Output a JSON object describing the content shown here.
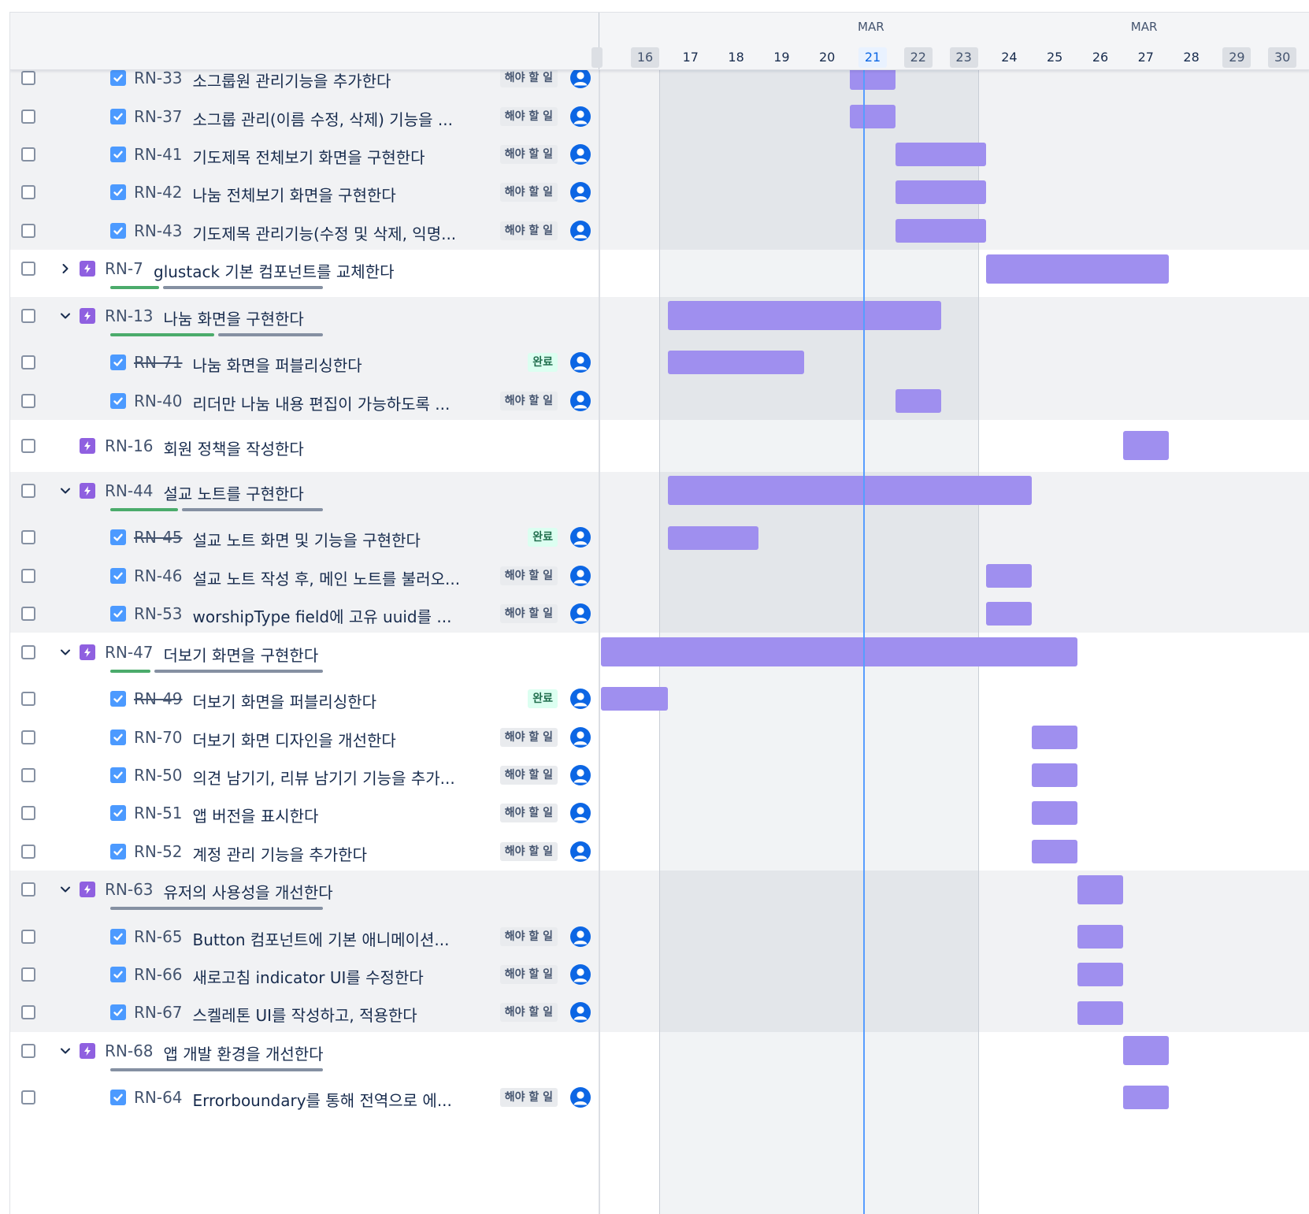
{
  "timeline": {
    "months": [
      {
        "label": "MAR",
        "day": "21"
      },
      {
        "label": "MAR",
        "day": "27"
      }
    ],
    "days": [
      {
        "label": "16",
        "weekend": true,
        "today": false
      },
      {
        "label": "17",
        "weekend": false,
        "today": false
      },
      {
        "label": "18",
        "weekend": false,
        "today": false
      },
      {
        "label": "19",
        "weekend": false,
        "today": false
      },
      {
        "label": "20",
        "weekend": false,
        "today": false
      },
      {
        "label": "21",
        "weekend": false,
        "today": true
      },
      {
        "label": "22",
        "weekend": true,
        "today": false
      },
      {
        "label": "23",
        "weekend": true,
        "today": false
      },
      {
        "label": "24",
        "weekend": false,
        "today": false
      },
      {
        "label": "25",
        "weekend": false,
        "today": false
      },
      {
        "label": "26",
        "weekend": false,
        "today": false
      },
      {
        "label": "27",
        "weekend": false,
        "today": false
      },
      {
        "label": "28",
        "weekend": false,
        "today": false
      },
      {
        "label": "29",
        "weekend": true,
        "today": false
      },
      {
        "label": "30",
        "weekend": true,
        "today": false
      }
    ]
  },
  "colors": {
    "bar": "#9f8fef",
    "epic_icon": "#8f60e0",
    "task_icon": "#4c9aff",
    "today_line": "#579dff",
    "progress_done": "#4bab6b",
    "progress_remaining": "#8590a2",
    "avatar": "#0c66e4"
  },
  "groups": [
    {
      "shaded": true,
      "rows": [
        {
          "type": "task",
          "key": "RN-33",
          "summary": "소그룹원 관리기능을 추가한다",
          "status": "해야 할 일",
          "done": false,
          "start": "21",
          "end": "21"
        },
        {
          "type": "task",
          "key": "RN-37",
          "summary": "소그룹 관리(이름 수정, 삭제) 기능을 ...",
          "status": "해야 할 일",
          "done": false,
          "start": "21",
          "end": "21"
        },
        {
          "type": "task",
          "key": "RN-41",
          "summary": "기도제목 전체보기 화면을 구현한다",
          "status": "해야 할 일",
          "done": false,
          "start": "22",
          "end": "23"
        },
        {
          "type": "task",
          "key": "RN-42",
          "summary": "나눔 전체보기 화면을 구현한다",
          "status": "해야 할 일",
          "done": false,
          "start": "22",
          "end": "23"
        },
        {
          "type": "task",
          "key": "RN-43",
          "summary": "기도제목 관리기능(수정 및 삭제, 익명...",
          "status": "해야 할 일",
          "done": false,
          "start": "22",
          "end": "23"
        }
      ]
    },
    {
      "shaded": false,
      "rows": [
        {
          "type": "epic",
          "key": "RN-7",
          "summary": "glustack 기본 컴포넌트를 교체한다",
          "expanded": false,
          "progress_done": 0.24,
          "progress_has": true,
          "start": "24",
          "end": "27"
        }
      ]
    },
    {
      "shaded": true,
      "rows": [
        {
          "type": "epic",
          "key": "RN-13",
          "summary": "나눔 화면을 구현한다",
          "expanded": true,
          "progress_done": 0.5,
          "progress_has": true,
          "start": "17",
          "end": "22"
        },
        {
          "type": "task",
          "key": "RN-71",
          "summary": "나눔 화면을 퍼블리싱한다",
          "status": "완료",
          "done": true,
          "start": "17",
          "end": "19"
        },
        {
          "type": "task",
          "key": "RN-40",
          "summary": "리더만 나눔 내용 편집이 가능하도록 ...",
          "status": "해야 할 일",
          "done": false,
          "start": "22",
          "end": "22"
        }
      ]
    },
    {
      "shaded": false,
      "rows": [
        {
          "type": "epic",
          "key": "RN-16",
          "summary": "회원 정책을 작성한다",
          "expanded": null,
          "progress_has": false,
          "start": "27",
          "end": "27"
        }
      ]
    },
    {
      "shaded": true,
      "rows": [
        {
          "type": "epic",
          "key": "RN-44",
          "summary": "설교 노트를 구현한다",
          "expanded": true,
          "progress_done": 0.33,
          "progress_has": true,
          "start": "17",
          "end": "24"
        },
        {
          "type": "task",
          "key": "RN-45",
          "summary": "설교 노트 화면 및 기능을 구현한다",
          "status": "완료",
          "done": true,
          "start": "17",
          "end": "18"
        },
        {
          "type": "task",
          "key": "RN-46",
          "summary": "설교 노트 작성 후, 메인 노트를 불러오...",
          "status": "해야 할 일",
          "done": false,
          "start": "24",
          "end": "24"
        },
        {
          "type": "task",
          "key": "RN-53",
          "summary": "worshipType field에 고유 uuid를 ...",
          "status": "해야 할 일",
          "done": false,
          "start": "24",
          "end": "24"
        }
      ]
    },
    {
      "shaded": false,
      "rows": [
        {
          "type": "epic",
          "key": "RN-47",
          "summary": "더보기 화면을 구현한다",
          "expanded": true,
          "progress_done": 0.2,
          "progress_has": true,
          "start": "15",
          "end": "25"
        },
        {
          "type": "task",
          "key": "RN-49",
          "summary": "더보기 화면을 퍼블리싱한다",
          "status": "완료",
          "done": true,
          "start": "15",
          "end": "16"
        },
        {
          "type": "task",
          "key": "RN-70",
          "summary": "더보기 화면 디자인을 개선한다",
          "status": "해야 할 일",
          "done": false,
          "start": "25",
          "end": "25"
        },
        {
          "type": "task",
          "key": "RN-50",
          "summary": "의견 남기기, 리뷰 남기기 기능을 추가...",
          "status": "해야 할 일",
          "done": false,
          "start": "25",
          "end": "25"
        },
        {
          "type": "task",
          "key": "RN-51",
          "summary": "앱 버전을 표시한다",
          "status": "해야 할 일",
          "done": false,
          "start": "25",
          "end": "25"
        },
        {
          "type": "task",
          "key": "RN-52",
          "summary": "계정 관리 기능을 추가한다",
          "status": "해야 할 일",
          "done": false,
          "start": "25",
          "end": "25"
        }
      ]
    },
    {
      "shaded": true,
      "rows": [
        {
          "type": "epic",
          "key": "RN-63",
          "summary": "유저의 사용성을 개선한다",
          "expanded": true,
          "progress_done": 0,
          "progress_has": true,
          "start": "26",
          "end": "26"
        },
        {
          "type": "task",
          "key": "RN-65",
          "summary": "Button 컴포넌트에 기본 애니메이션...",
          "status": "해야 할 일",
          "done": false,
          "start": "26",
          "end": "26"
        },
        {
          "type": "task",
          "key": "RN-66",
          "summary": "새로고침 indicator UI를 수정한다",
          "status": "해야 할 일",
          "done": false,
          "start": "26",
          "end": "26"
        },
        {
          "type": "task",
          "key": "RN-67",
          "summary": "스켈레톤 UI를 작성하고, 적용한다",
          "status": "해야 할 일",
          "done": false,
          "start": "26",
          "end": "26"
        }
      ]
    },
    {
      "shaded": false,
      "rows": [
        {
          "type": "epic",
          "key": "RN-68",
          "summary": "앱 개발 환경을 개선한다",
          "expanded": true,
          "progress_done": 0,
          "progress_has": true,
          "start": "27",
          "end": "27"
        },
        {
          "type": "task",
          "key": "RN-64",
          "summary": "Errorboundary를 통해 전역으로 에...",
          "status": "해야 할 일",
          "done": false,
          "start": "27",
          "end": "27"
        }
      ]
    }
  ]
}
